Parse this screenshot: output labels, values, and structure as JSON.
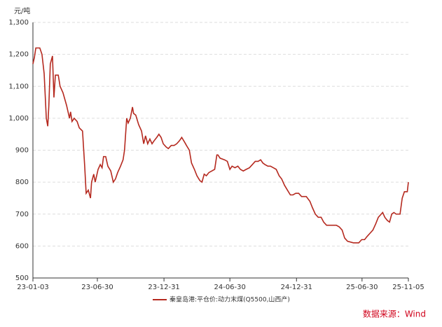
{
  "chart_data": {
    "type": "line",
    "y_label": "元/吨",
    "source": "数据来源：Wind",
    "x": [
      "23-01-03",
      "23-01-07",
      "23-01-11",
      "23-01-22",
      "23-01-28",
      "23-02-03",
      "23-02-09",
      "23-02-13",
      "23-02-16",
      "23-02-20",
      "23-02-26",
      "23-03-02",
      "23-03-06",
      "23-03-14",
      "23-03-19",
      "23-03-27",
      "23-04-06",
      "23-04-14",
      "23-04-17",
      "23-04-21",
      "23-04-27",
      "23-05-05",
      "23-05-11",
      "23-05-20",
      "23-05-26",
      "23-05-30",
      "23-06-05",
      "23-06-11",
      "23-06-14",
      "23-06-20",
      "23-06-24",
      "23-07-02",
      "23-07-08",
      "23-07-13",
      "23-07-17",
      "23-07-23",
      "23-07-29",
      "23-08-06",
      "23-08-13",
      "23-08-19",
      "23-08-25",
      "23-09-02",
      "23-09-09",
      "23-09-13",
      "23-09-19",
      "23-09-23",
      "23-09-29",
      "23-10-05",
      "23-10-08",
      "23-10-14",
      "23-10-22",
      "23-10-30",
      "23-11-05",
      "23-11-10",
      "23-11-16",
      "23-11-22",
      "23-11-28",
      "23-12-04",
      "23-12-11",
      "23-12-17",
      "23-12-23",
      "23-12-29",
      "24-01-06",
      "24-01-12",
      "24-01-20",
      "24-01-28",
      "24-02-04",
      "24-02-12",
      "24-02-18",
      "24-02-26",
      "24-03-02",
      "24-03-10",
      "24-03-16",
      "24-03-24",
      "24-03-31",
      "24-04-08",
      "24-04-14",
      "24-04-20",
      "24-04-26",
      "24-05-03",
      "24-05-11",
      "24-05-19",
      "24-05-25",
      "24-05-28",
      "24-06-03",
      "24-06-15",
      "24-06-23",
      "24-06-30",
      "24-07-06",
      "24-07-14",
      "24-07-22",
      "24-07-29",
      "24-08-06",
      "24-08-14",
      "24-08-23",
      "24-08-31",
      "24-09-08",
      "24-09-16",
      "24-09-23",
      "24-09-29",
      "24-10-05",
      "24-10-13",
      "24-10-20",
      "24-10-28",
      "24-11-05",
      "24-11-13",
      "24-11-20",
      "24-11-28",
      "24-12-06",
      "24-12-14",
      "24-12-21",
      "24-12-29",
      "25-01-06",
      "25-01-14",
      "25-01-27",
      "25-02-06",
      "25-02-13",
      "25-02-21",
      "25-03-01",
      "25-03-09",
      "25-03-16",
      "25-03-24",
      "25-04-09",
      "25-04-20",
      "25-04-28",
      "25-05-06",
      "25-05-13",
      "25-05-21",
      "25-06-06",
      "25-06-21",
      "25-06-29",
      "25-07-07",
      "25-07-14",
      "25-07-22",
      "25-07-30",
      "25-08-07",
      "25-08-14",
      "25-08-22",
      "25-08-26",
      "25-09-01",
      "25-09-08",
      "25-09-14",
      "25-09-20",
      "25-09-26",
      "25-10-02",
      "25-10-07",
      "25-10-13",
      "25-10-19",
      "25-10-25",
      "25-11-02",
      "25-11-05"
    ],
    "series": [
      {
        "name": "秦皇岛港:平仓价:动力末煤(Q5500,山西产)",
        "color": "#b5291f",
        "values": [
          1170,
          1190,
          1220,
          1220,
          1200,
          1140,
          1000,
          975,
          1040,
          1170,
          1195,
          1065,
          1135,
          1135,
          1100,
          1080,
          1040,
          1000,
          1020,
          990,
          1000,
          990,
          970,
          960,
          850,
          765,
          775,
          750,
          800,
          825,
          800,
          840,
          855,
          845,
          880,
          880,
          850,
          835,
          800,
          810,
          830,
          850,
          870,
          900,
          1000,
          985,
          1000,
          1035,
          1015,
          1010,
          980,
          960,
          920,
          945,
          920,
          935,
          920,
          930,
          940,
          950,
          940,
          920,
          910,
          905,
          915,
          915,
          920,
          930,
          940,
          925,
          915,
          900,
          860,
          840,
          820,
          805,
          800,
          825,
          820,
          830,
          835,
          840,
          885,
          885,
          875,
          870,
          865,
          840,
          850,
          845,
          850,
          840,
          835,
          840,
          845,
          855,
          865,
          865,
          870,
          860,
          855,
          850,
          850,
          845,
          840,
          820,
          810,
          790,
          775,
          760,
          760,
          765,
          765,
          755,
          755,
          740,
          720,
          700,
          690,
          690,
          675,
          665,
          665,
          665,
          660,
          650,
          625,
          615,
          610,
          610,
          620,
          620,
          630,
          640,
          650,
          670,
          690,
          700,
          705,
          690,
          680,
          675,
          700,
          705,
          700,
          700,
          700,
          750,
          770,
          770,
          800
        ]
      }
    ],
    "xlim": [
      "23-01-03",
      "25-11-05"
    ],
    "xticks": [
      "23-01-03",
      "23-06-30",
      "23-12-31",
      "24-06-30",
      "24-12-31",
      "25-06-30",
      "25-11-05"
    ],
    "ylim": [
      500,
      1300
    ],
    "yticks": [
      500,
      600,
      700,
      800,
      900,
      {
        "value": 1000,
        "label": "1,000"
      },
      {
        "value": 1100,
        "label": "1,100"
      },
      {
        "value": 1200,
        "label": "1,200"
      },
      {
        "value": 1300,
        "label": "1,300"
      }
    ],
    "grid": true
  }
}
